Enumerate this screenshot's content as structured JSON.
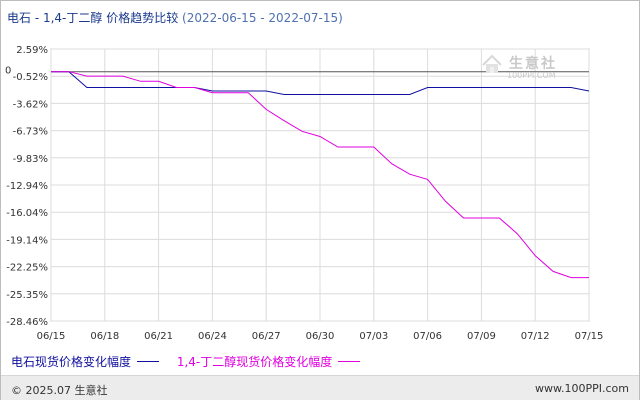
{
  "title": {
    "main": "电石 - 1,4-丁二醇 价格趋势比较",
    "date_range": "(2022-06-15 - 2022-07-15)"
  },
  "logo": {
    "name": "生意社",
    "url": "100PPI.COM"
  },
  "footer": {
    "copyright": "© 2025.07 生意社",
    "site": "www.100PPI.com"
  },
  "colors": {
    "series_1": "#1010a0",
    "series_2": "#e000e0",
    "grid": "#dcdcdc",
    "zero_line": "#555555"
  },
  "chart_data": {
    "type": "line",
    "x": [
      "06/15",
      "06/16",
      "06/17",
      "06/18",
      "06/19",
      "06/20",
      "06/21",
      "06/22",
      "06/23",
      "06/24",
      "06/25",
      "06/26",
      "06/27",
      "06/28",
      "06/29",
      "06/30",
      "07/01",
      "07/02",
      "07/03",
      "07/04",
      "07/05",
      "07/06",
      "07/07",
      "07/08",
      "07/09",
      "07/10",
      "07/11",
      "07/12",
      "07/13",
      "07/14",
      "07/15"
    ],
    "x_tick_labels": [
      "06/15",
      "06/18",
      "06/21",
      "06/24",
      "06/27",
      "06/30",
      "07/03",
      "07/06",
      "07/09",
      "07/12",
      "07/15"
    ],
    "y_tick_labels": [
      "2.59%",
      "-0.52%",
      "-3.62%",
      "-6.73%",
      "-9.83%",
      "-12.94%",
      "-16.04%",
      "-19.14%",
      "-22.25%",
      "-25.35%",
      "-28.46%"
    ],
    "y_ticks": [
      2.59,
      -0.52,
      -3.62,
      -6.73,
      -9.83,
      -12.94,
      -16.04,
      -19.14,
      -22.25,
      -25.35,
      -28.46
    ],
    "zero_label": "0",
    "ylim": [
      -28.46,
      2.59
    ],
    "grid": true,
    "legend_position": "bottom-left",
    "series": [
      {
        "name": "电石现货价格变化幅度",
        "values": [
          0,
          0,
          -1.8,
          -1.8,
          -1.8,
          -1.8,
          -1.8,
          -1.8,
          -1.8,
          -2.2,
          -2.2,
          -2.2,
          -2.2,
          -2.6,
          -2.6,
          -2.6,
          -2.6,
          -2.6,
          -2.6,
          -2.6,
          -2.6,
          -1.8,
          -1.8,
          -1.8,
          -1.8,
          -1.8,
          -1.8,
          -1.8,
          -1.8,
          -1.8,
          -2.2
        ]
      },
      {
        "name": "1,4-丁二醇现货价格变化幅度",
        "values": [
          0,
          0,
          -0.5,
          -0.5,
          -0.5,
          -1.1,
          -1.1,
          -1.8,
          -1.8,
          -2.4,
          -2.4,
          -2.4,
          -4.3,
          -5.6,
          -6.8,
          -7.4,
          -8.6,
          -8.6,
          -8.6,
          -10.5,
          -11.7,
          -12.3,
          -14.8,
          -16.7,
          -16.7,
          -16.7,
          -18.5,
          -21.0,
          -22.8,
          -23.5,
          -23.5
        ]
      }
    ]
  }
}
